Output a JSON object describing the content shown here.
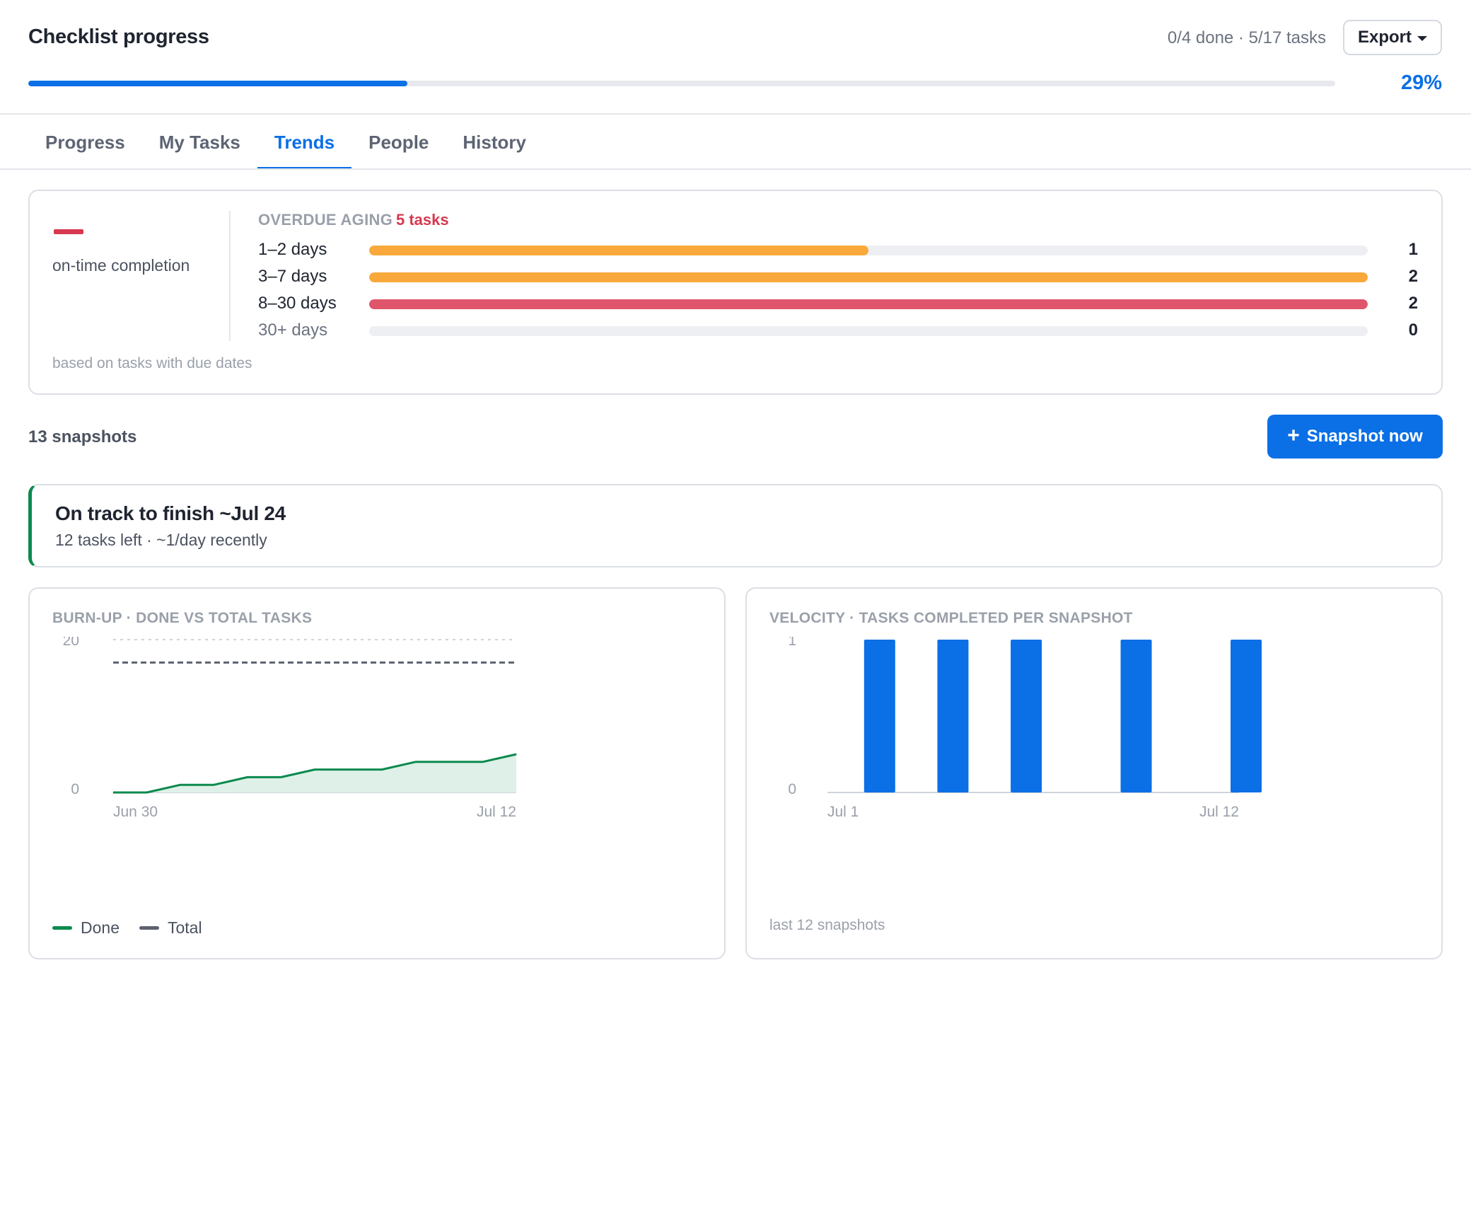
{
  "header": {
    "title": "Checklist progress",
    "counts": "0/4 done · 5/17 tasks",
    "export_label": "Export",
    "progress_fraction": 0.29,
    "percent_label": "29%"
  },
  "tabs": [
    {
      "label": "Progress",
      "active": false
    },
    {
      "label": "My Tasks",
      "active": false
    },
    {
      "label": "Trends",
      "active": true
    },
    {
      "label": "People",
      "active": false
    },
    {
      "label": "History",
      "active": false
    }
  ],
  "aging": {
    "ontime_label": "on-time completion",
    "heading": "OVERDUE AGING",
    "count_label": "5 tasks",
    "note": "based on tasks with due dates",
    "buckets": [
      {
        "label": "1–2 days",
        "count": "1",
        "fraction": 0.5,
        "color": "#f9a93b",
        "muted": false
      },
      {
        "label": "3–7 days",
        "count": "2",
        "fraction": 1.0,
        "color": "#f9a93b",
        "muted": false
      },
      {
        "label": "8–30 days",
        "count": "2",
        "fraction": 1.0,
        "color": "#df566c",
        "muted": false
      },
      {
        "label": "30+ days",
        "count": "0",
        "fraction": 0.0,
        "color": "#df566c",
        "muted": true
      }
    ]
  },
  "snapshots": {
    "count_label": "13 snapshots",
    "button_label": "Snapshot now"
  },
  "forecast": {
    "title": "On track to finish ~Jul 24",
    "subtitle": "12 tasks left · ~1/day recently"
  },
  "colors": {
    "accent": "#0b6fe6",
    "done": "#0b8a4e",
    "total": "#5d6170",
    "danger": "#d6394f",
    "warning": "#f9a93b"
  },
  "chart_data": [
    {
      "type": "area",
      "title": "BURN-UP · DONE VS TOTAL TASKS",
      "x_start_label": "Jun 30",
      "x_end_label": "Jul 12",
      "ylim": [
        0,
        20
      ],
      "y_ticks": [
        "0",
        "20"
      ],
      "legend": "bottom-left",
      "series": [
        {
          "name": "Done",
          "values": [
            0,
            0,
            1,
            1,
            2,
            2,
            3,
            3,
            3,
            4,
            4,
            4,
            5
          ],
          "color": "#0b8a4e",
          "fill": "#dff0e8"
        },
        {
          "name": "Total",
          "values": [
            17,
            17,
            17,
            17,
            17,
            17,
            17,
            17,
            17,
            17,
            17,
            17,
            17
          ],
          "color": "#5d6170",
          "dashed": true
        }
      ]
    },
    {
      "type": "bar",
      "title": "VELOCITY · TASKS COMPLETED PER SNAPSHOT",
      "x_start_label": "Jul 1",
      "x_end_label": "Jul 12",
      "ylim": [
        0,
        1
      ],
      "y_ticks": [
        "0",
        "1"
      ],
      "values": [
        0,
        1,
        0,
        1,
        0,
        1,
        0,
        0,
        1,
        0,
        0,
        1
      ],
      "color": "#0b6fe6",
      "note": "last 12 snapshots"
    }
  ]
}
